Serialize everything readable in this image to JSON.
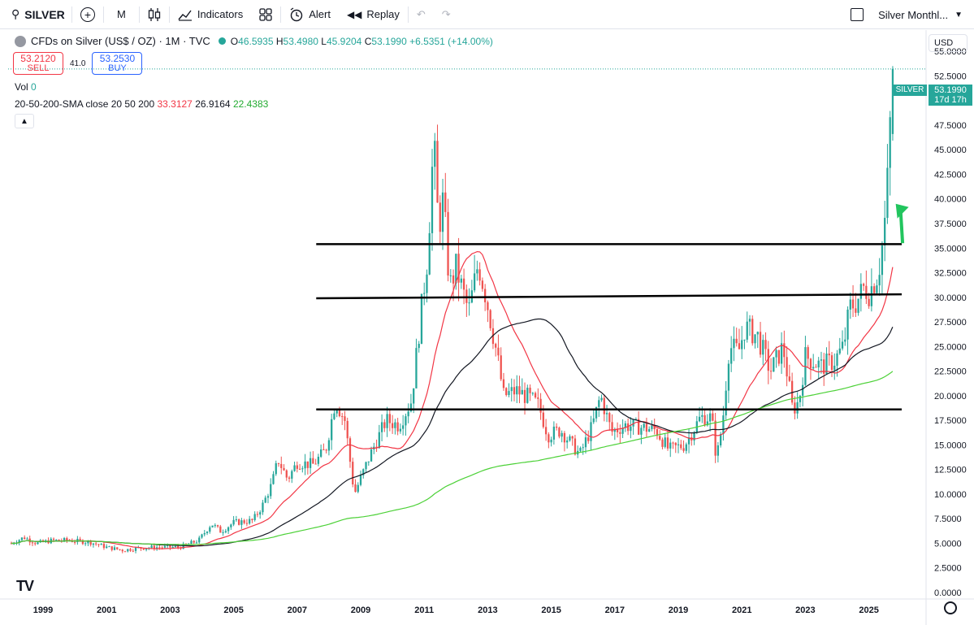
{
  "toolbar": {
    "symbol": "SILVER",
    "interval": "M",
    "indicators_label": "Indicators",
    "alert_label": "Alert",
    "replay_label": "Replay",
    "layout_name": "Silver Monthl..."
  },
  "legend": {
    "title": "CFDs on Silver (US$ / OZ) · 1M · TVC",
    "o_label": "O",
    "o": "46.5935",
    "h_label": "H",
    "h": "53.4980",
    "l_label": "L",
    "l": "45.9204",
    "c_label": "C",
    "c": "53.1990",
    "change": "+6.5351 (+14.00%)"
  },
  "trade": {
    "sell_price": "53.2120",
    "sell_label": "SELL",
    "spread": "41.0",
    "buy_price": "53.2530",
    "buy_label": "BUY"
  },
  "volume": {
    "label": "Vol",
    "value": "0"
  },
  "sma": {
    "label": "20-50-200-SMA close 20 50 200",
    "v20": "33.3127",
    "v50": "26.9164",
    "v200": "22.4383"
  },
  "currency": "USD",
  "last_price": {
    "symbol": "SILVER",
    "price": "53.1990",
    "countdown": "17d 17h"
  },
  "colors": {
    "up": "#26a69a",
    "down": "#ef5350",
    "sma20": "#f23645",
    "sma50": "#131722",
    "sma200": "#4cd137"
  },
  "chart_data": {
    "type": "candlestick",
    "x_range": [
      1997.9,
      2026.8
    ],
    "ylim": [
      0,
      56
    ],
    "x_tick_labels": [
      "1999",
      "2001",
      "2003",
      "2005",
      "2007",
      "2009",
      "2011",
      "2013",
      "2015",
      "2017",
      "2019",
      "2021",
      "2023",
      "2025"
    ],
    "x_ticks": [
      1999,
      2001,
      2003,
      2005,
      2007,
      2009,
      2011,
      2013,
      2015,
      2017,
      2019,
      2021,
      2023,
      2025
    ],
    "y_ticks": [
      0,
      2.5,
      5,
      7.5,
      10,
      12.5,
      15,
      17.5,
      20,
      22.5,
      25,
      27.5,
      30,
      32.5,
      35,
      37.5,
      40,
      42.5,
      45,
      47.5,
      50,
      52.5,
      55
    ],
    "y_tick_labels": [
      "0.0000",
      "2.5000",
      "5.0000",
      "7.5000",
      "10.0000",
      "12.5000",
      "15.0000",
      "17.5000",
      "20.0000",
      "22.5000",
      "25.0000",
      "27.5000",
      "30.0000",
      "32.5000",
      "35.0000",
      "37.5000",
      "40.0000",
      "42.5000",
      "45.0000",
      "47.5000",
      "50.0000",
      "52.5000",
      "55.0000"
    ],
    "price_path": [
      [
        1998.0,
        5.0
      ],
      [
        1998.4,
        5.6
      ],
      [
        1998.8,
        5.0
      ],
      [
        1999.3,
        5.3
      ],
      [
        1999.8,
        5.3
      ],
      [
        2000.5,
        5.1
      ],
      [
        2001.0,
        4.6
      ],
      [
        2001.5,
        4.3
      ],
      [
        2002.0,
        4.5
      ],
      [
        2002.6,
        4.6
      ],
      [
        2003.3,
        4.6
      ],
      [
        2003.9,
        5.3
      ],
      [
        2004.3,
        7.0
      ],
      [
        2004.6,
        6.2
      ],
      [
        2005.0,
        7.1
      ],
      [
        2005.6,
        7.3
      ],
      [
        2005.9,
        8.8
      ],
      [
        2006.2,
        11.0
      ],
      [
        2006.4,
        13.5
      ],
      [
        2006.7,
        11.5
      ],
      [
        2007.0,
        13.2
      ],
      [
        2007.5,
        13.0
      ],
      [
        2007.9,
        14.5
      ],
      [
        2008.2,
        19.5
      ],
      [
        2008.5,
        17.5
      ],
      [
        2008.8,
        10.0
      ],
      [
        2008.95,
        11.2
      ],
      [
        2009.3,
        14.0
      ],
      [
        2009.8,
        17.5
      ],
      [
        2010.2,
        17.0
      ],
      [
        2010.6,
        19.5
      ],
      [
        2010.9,
        28.5
      ],
      [
        2011.1,
        34.0
      ],
      [
        2011.3,
        46.0
      ],
      [
        2011.45,
        37.0
      ],
      [
        2011.6,
        40.0
      ],
      [
        2011.8,
        31.0
      ],
      [
        2012.0,
        33.0
      ],
      [
        2012.4,
        28.5
      ],
      [
        2012.7,
        33.5
      ],
      [
        2012.95,
        30.0
      ],
      [
        2013.3,
        24.0
      ],
      [
        2013.5,
        20.0
      ],
      [
        2013.9,
        20.5
      ],
      [
        2014.3,
        19.8
      ],
      [
        2014.6,
        19.0
      ],
      [
        2014.9,
        16.0
      ],
      [
        2015.3,
        16.5
      ],
      [
        2015.9,
        14.0
      ],
      [
        2016.3,
        17.0
      ],
      [
        2016.55,
        20.0
      ],
      [
        2016.9,
        16.3
      ],
      [
        2017.3,
        17.0
      ],
      [
        2017.8,
        16.8
      ],
      [
        2018.3,
        16.5
      ],
      [
        2018.7,
        14.5
      ],
      [
        2019.2,
        15.0
      ],
      [
        2019.7,
        17.8
      ],
      [
        2020.05,
        17.8
      ],
      [
        2020.2,
        13.5
      ],
      [
        2020.4,
        17.5
      ],
      [
        2020.6,
        25.0
      ],
      [
        2020.9,
        24.5
      ],
      [
        2021.1,
        27.0
      ],
      [
        2021.5,
        26.0
      ],
      [
        2021.9,
        22.5
      ],
      [
        2022.3,
        25.0
      ],
      [
        2022.6,
        18.5
      ],
      [
        2022.8,
        19.5
      ],
      [
        2023.0,
        24.0
      ],
      [
        2023.5,
        23.0
      ],
      [
        2023.9,
        23.5
      ],
      [
        2024.2,
        25.0
      ],
      [
        2024.4,
        29.0
      ],
      [
        2024.6,
        29.5
      ],
      [
        2024.85,
        31.0
      ],
      [
        2025.0,
        30.5
      ],
      [
        2025.3,
        32.5
      ],
      [
        2025.45,
        36.0
      ],
      [
        2025.55,
        39.5
      ],
      [
        2025.65,
        46.5
      ],
      [
        2025.75,
        53.2
      ]
    ],
    "horizontal_levels": [
      {
        "x0": 2007.6,
        "x1": 2026.8,
        "y": 35.4
      },
      {
        "x0": 2007.6,
        "x1": 2026.8,
        "y": 29.9,
        "y_end": 30.3
      },
      {
        "x0": 2007.6,
        "x1": 2026.8,
        "y": 18.6
      }
    ],
    "arrow": {
      "from": [
        2026.7,
        35.5
      ],
      "to": [
        2026.1,
        39.5
      ]
    },
    "sma_periods": [
      20,
      50,
      200
    ]
  }
}
